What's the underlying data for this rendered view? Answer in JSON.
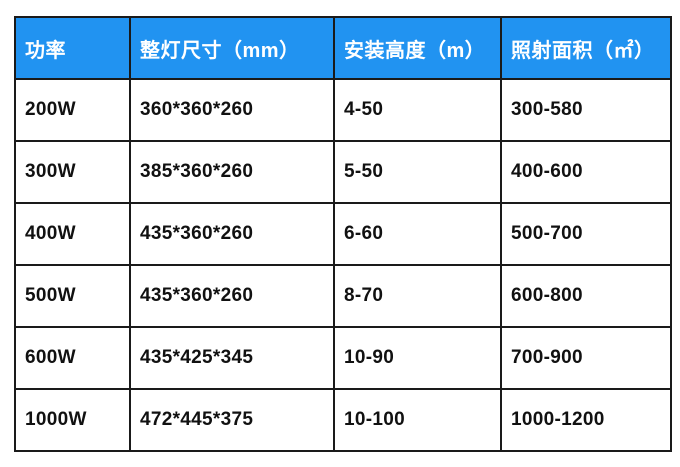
{
  "page": {
    "background": "#ffffff"
  },
  "table_style": {
    "header_bg": "#2193f1",
    "header_text_color": "#ffffff",
    "border_color": "#1a1a1a",
    "body_text_color": "#111111"
  },
  "chart_data": {
    "type": "table",
    "title": "",
    "columns": [
      "功率",
      "整灯尺寸（mm）",
      "安装高度（m）",
      "照射面积（㎡）"
    ],
    "rows": [
      [
        "200W",
        "360*360*260",
        "4-50",
        "300-580"
      ],
      [
        "300W",
        "385*360*260",
        "5-50",
        "400-600"
      ],
      [
        "400W",
        "435*360*260",
        "6-60",
        "500-700"
      ],
      [
        "500W",
        "435*360*260",
        "8-70",
        "600-800"
      ],
      [
        "600W",
        "435*425*345",
        "10-90",
        "700-900"
      ],
      [
        "1000W",
        "472*445*375",
        "10-100",
        "1000-1200"
      ]
    ],
    "layout_hints": {
      "header_row": true,
      "grid": true,
      "column_alignment": "left"
    }
  }
}
